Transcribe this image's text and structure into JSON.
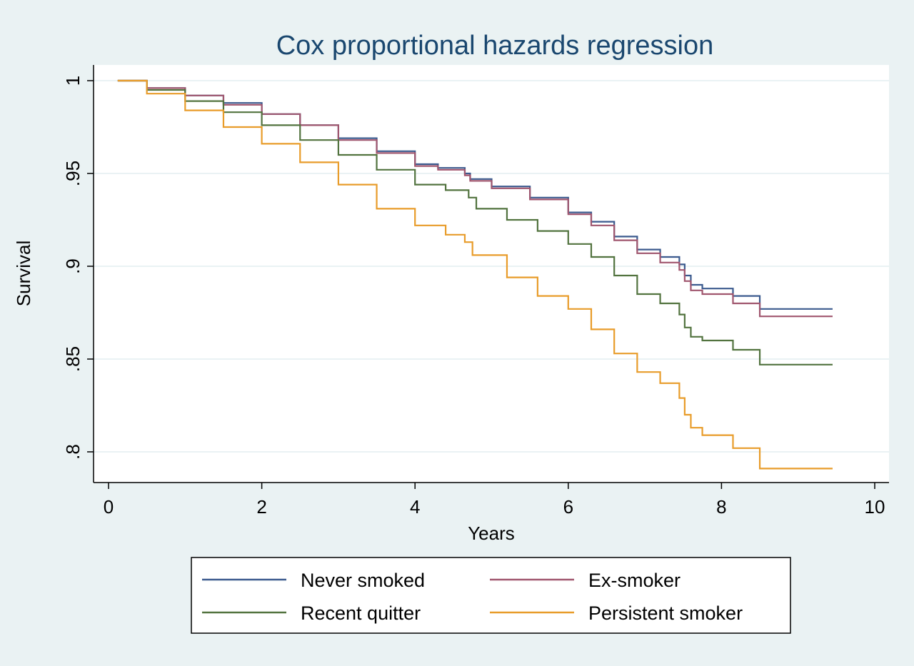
{
  "chart_data": {
    "type": "line",
    "title": "Cox proportional hazards regression",
    "xlabel": "Years",
    "ylabel": "Survival",
    "xlim": [
      0,
      10
    ],
    "ylim": [
      0.784,
      1.005
    ],
    "x_ticks": [
      0,
      2,
      4,
      6,
      8,
      10
    ],
    "x_tick_labels": [
      "0",
      "2",
      "4",
      "6",
      "8",
      "10"
    ],
    "y_ticks": [
      0.8,
      0.85,
      0.9,
      0.95,
      1
    ],
    "y_tick_labels": [
      ".8",
      ".85",
      ".9",
      ".95",
      "1"
    ],
    "grid": "horizontal",
    "legend_position": "bottom",
    "line_style": "step",
    "series": [
      {
        "name": "Never smoked",
        "color": "#3b5a8e",
        "x": [
          0.12,
          0.5,
          1.0,
          1.5,
          2.0,
          2.5,
          3.0,
          3.5,
          4.0,
          4.3,
          4.65,
          4.72,
          5.0,
          5.5,
          6.0,
          6.3,
          6.6,
          6.9,
          7.2,
          7.45,
          7.52,
          7.6,
          7.75,
          8.15,
          8.5,
          9.45
        ],
        "y": [
          1.0,
          0.996,
          0.992,
          0.988,
          0.982,
          0.976,
          0.969,
          0.962,
          0.955,
          0.953,
          0.95,
          0.947,
          0.943,
          0.937,
          0.929,
          0.924,
          0.916,
          0.909,
          0.905,
          0.901,
          0.895,
          0.89,
          0.888,
          0.884,
          0.877,
          0.877
        ]
      },
      {
        "name": "Ex-smoker",
        "color": "#a0566e",
        "x": [
          0.12,
          0.5,
          1.0,
          1.5,
          2.0,
          2.5,
          3.0,
          3.5,
          4.0,
          4.3,
          4.65,
          4.72,
          5.0,
          5.5,
          6.0,
          6.3,
          6.6,
          6.9,
          7.2,
          7.45,
          7.52,
          7.6,
          7.75,
          8.15,
          8.5,
          9.45
        ],
        "y": [
          1.0,
          0.996,
          0.992,
          0.987,
          0.982,
          0.976,
          0.968,
          0.961,
          0.954,
          0.952,
          0.949,
          0.946,
          0.942,
          0.936,
          0.928,
          0.922,
          0.914,
          0.907,
          0.902,
          0.898,
          0.892,
          0.887,
          0.885,
          0.88,
          0.873,
          0.873
        ]
      },
      {
        "name": "Recent quitter",
        "color": "#52733f",
        "x": [
          0.12,
          0.5,
          1.0,
          1.5,
          2.0,
          2.5,
          3.0,
          3.5,
          4.0,
          4.4,
          4.7,
          4.8,
          5.2,
          5.6,
          6.0,
          6.3,
          6.6,
          6.9,
          7.2,
          7.45,
          7.52,
          7.6,
          7.75,
          8.15,
          8.5,
          9.45
        ],
        "y": [
          1.0,
          0.995,
          0.989,
          0.983,
          0.976,
          0.968,
          0.96,
          0.952,
          0.944,
          0.941,
          0.937,
          0.931,
          0.925,
          0.919,
          0.912,
          0.905,
          0.895,
          0.885,
          0.88,
          0.874,
          0.867,
          0.862,
          0.86,
          0.855,
          0.847,
          0.847
        ]
      },
      {
        "name": "Persistent smoker",
        "color": "#e89c2a",
        "x": [
          0.12,
          0.5,
          1.0,
          1.5,
          2.0,
          2.5,
          3.0,
          3.5,
          4.0,
          4.4,
          4.65,
          4.75,
          5.2,
          5.6,
          6.0,
          6.3,
          6.6,
          6.9,
          7.2,
          7.45,
          7.52,
          7.6,
          7.75,
          8.15,
          8.5,
          9.45
        ],
        "y": [
          1.0,
          0.993,
          0.984,
          0.975,
          0.966,
          0.956,
          0.944,
          0.931,
          0.922,
          0.917,
          0.913,
          0.906,
          0.894,
          0.884,
          0.877,
          0.866,
          0.853,
          0.843,
          0.837,
          0.829,
          0.82,
          0.813,
          0.809,
          0.802,
          0.791,
          0.791
        ]
      }
    ]
  },
  "colors": {
    "outer_background": "#eaf2f3",
    "plot_background": "#ffffff",
    "title": "#1a476f",
    "grid": "#e4eef0"
  }
}
